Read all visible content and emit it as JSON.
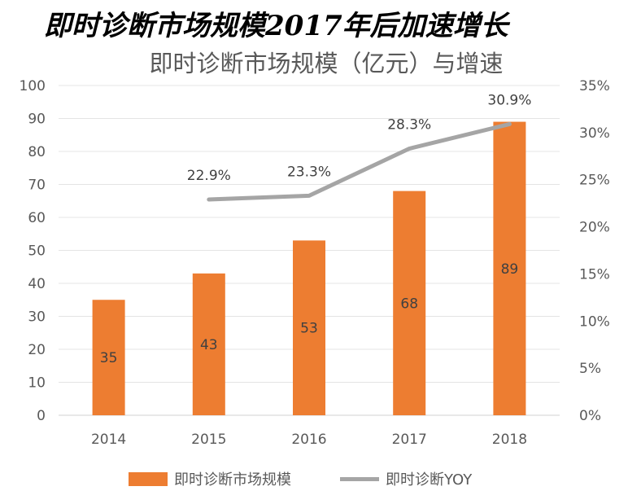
{
  "headline": "即时诊断市场规模2017年后加速增长",
  "chart_data": {
    "type": "bar",
    "title": "即时诊断市场规模（亿元）与增速",
    "categories": [
      "2014",
      "2015",
      "2016",
      "2017",
      "2018"
    ],
    "series": [
      {
        "name": "即时诊断市场规模",
        "kind": "bar",
        "axis": "left",
        "values": [
          35,
          43,
          53,
          68,
          89
        ],
        "color": "#ED7D31"
      },
      {
        "name": "即时诊断YOY",
        "kind": "line",
        "axis": "right",
        "values": [
          null,
          22.9,
          23.3,
          28.3,
          30.9
        ],
        "labels": [
          null,
          "22.9%",
          "23.3%",
          "28.3%",
          "30.9%"
        ],
        "color": "#A5A5A5"
      }
    ],
    "y_left": {
      "range": [
        0,
        100
      ],
      "ticks": [
        0,
        10,
        20,
        30,
        40,
        50,
        60,
        70,
        80,
        90,
        100
      ]
    },
    "y_right": {
      "range": [
        0,
        35
      ],
      "ticks": [
        0,
        5,
        10,
        15,
        20,
        25,
        30,
        35
      ],
      "tick_labels": [
        "0%",
        "5%",
        "10%",
        "15%",
        "20%",
        "25%",
        "30%",
        "35%"
      ]
    },
    "grid": true,
    "legend": "bottom",
    "xlabel": "",
    "ylabel": ""
  }
}
